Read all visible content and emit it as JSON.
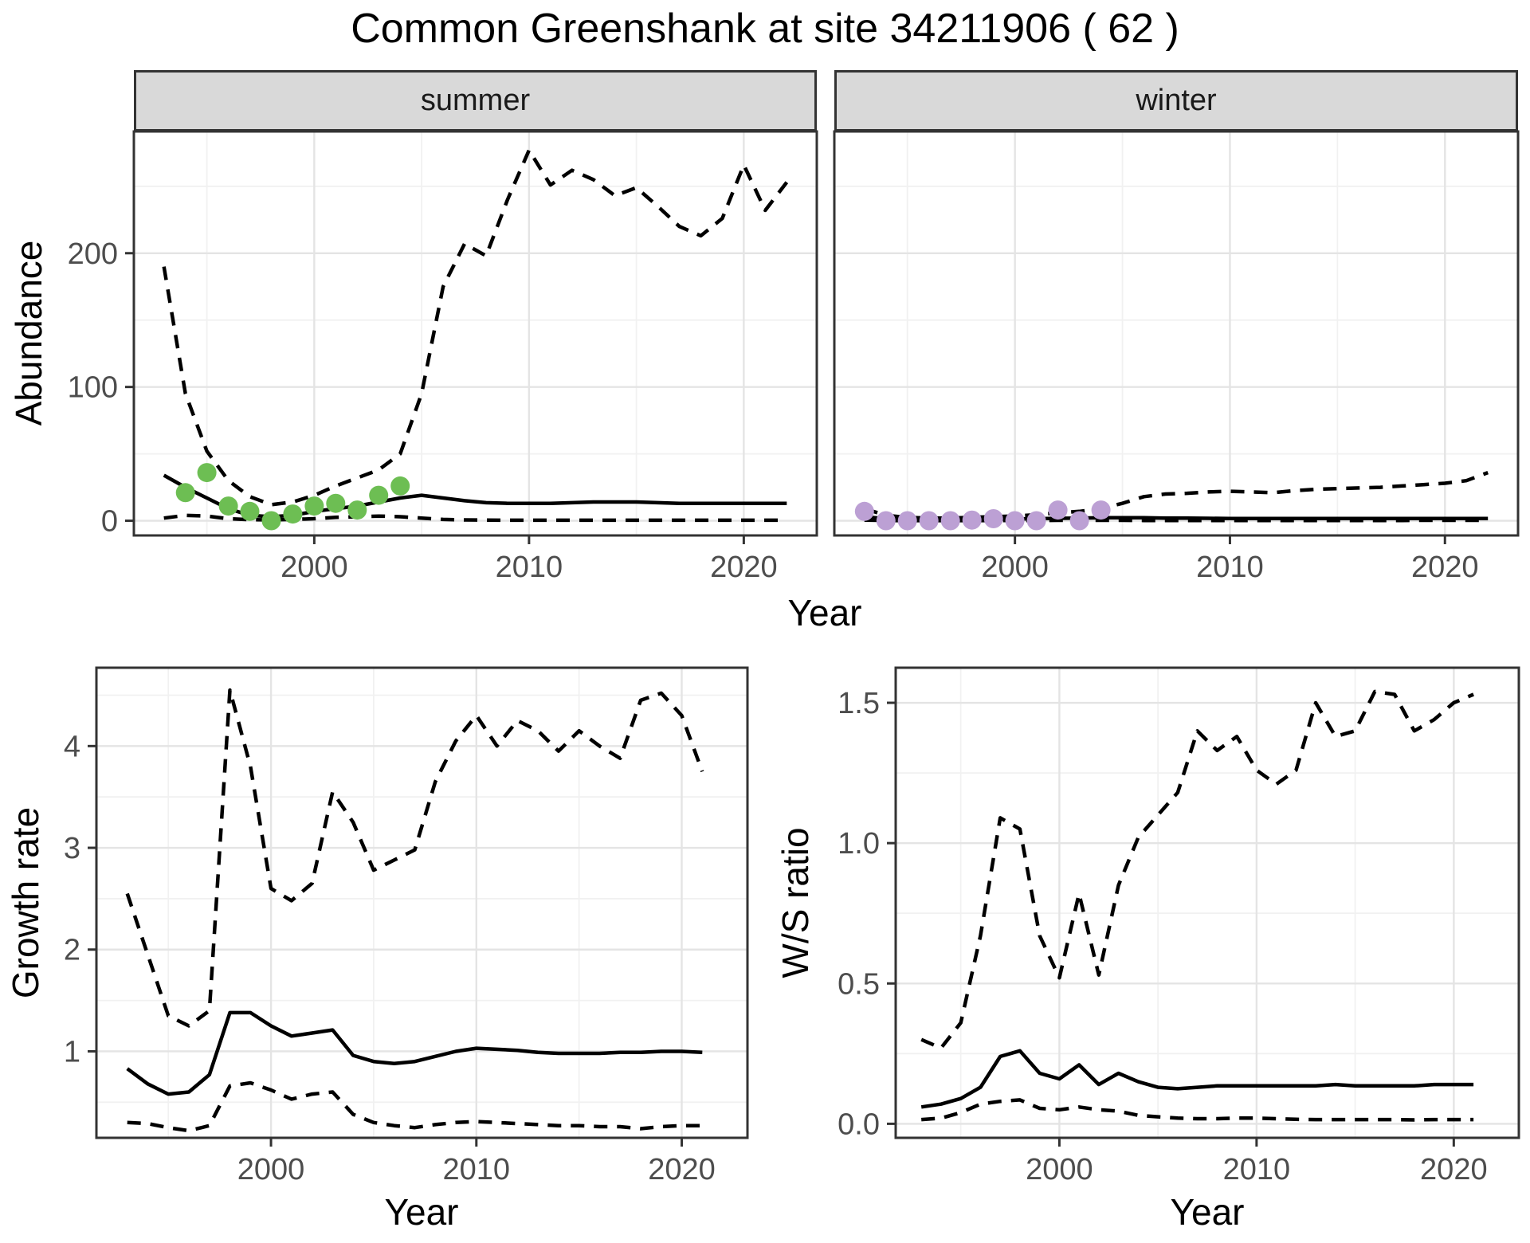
{
  "title": "Common Greenshank at site 34211906 ( 62 )",
  "facets": {
    "summer": "summer",
    "winter": "winter"
  },
  "axis_titles": {
    "x": "Year",
    "y_top": "Abundance",
    "y_growth": "Growth rate",
    "y_ws": "W/S ratio"
  },
  "colors": {
    "summer_points": "#6DBE53",
    "winter_points": "#BCA0D4",
    "line": "#000000",
    "grid_major": "#E4E4E4",
    "grid_minor": "#F1F1F1",
    "strip_bg": "#D9D9D9",
    "panel_border": "#333333",
    "tick_text": "#4D4D4D"
  },
  "chart_data": [
    {
      "id": "abundance-summer",
      "type": "line",
      "facet": "summer",
      "xlabel": "Year",
      "ylabel": "Abundance",
      "legend": "none",
      "grid": true,
      "xlim": [
        1991.6,
        2023.4
      ],
      "ylim": [
        -11,
        291
      ],
      "xticks": [
        2000,
        2010,
        2020
      ],
      "xtick_labels": [
        "2000",
        "2010",
        "2020"
      ],
      "xminor": [
        1995,
        2005,
        2015
      ],
      "yticks": [
        0,
        100,
        200
      ],
      "ytick_labels": [
        "0",
        "100",
        "200"
      ],
      "yminor": [
        50,
        150,
        250
      ],
      "years": [
        1993,
        1994,
        1995,
        1996,
        1997,
        1998,
        1999,
        2000,
        2001,
        2002,
        2003,
        2004,
        2005,
        2006,
        2007,
        2008,
        2009,
        2010,
        2011,
        2012,
        2013,
        2014,
        2015,
        2016,
        2017,
        2018,
        2019,
        2020,
        2021,
        2022
      ],
      "series": [
        {
          "name": "median",
          "style": "solid",
          "values": [
            34,
            25,
            17,
            9,
            4,
            3,
            4,
            7,
            9,
            11,
            14,
            17,
            19,
            17,
            15,
            13.5,
            13,
            13,
            13,
            13.5,
            14,
            14,
            14,
            13.5,
            13,
            13,
            13,
            13,
            13,
            13
          ]
        },
        {
          "name": "upper95",
          "style": "dashed",
          "values": [
            190,
            95,
            52,
            30,
            18,
            12,
            14,
            19,
            26,
            32,
            38,
            50,
            95,
            175,
            207,
            198,
            240,
            277,
            251,
            262,
            255,
            243,
            249,
            235,
            220,
            213,
            226,
            266,
            232,
            253
          ]
        },
        {
          "name": "lower95",
          "style": "dashed",
          "values": [
            2,
            4,
            3.5,
            1.5,
            0.8,
            0.6,
            1,
            1.5,
            2.5,
            3,
            3.5,
            3,
            2,
            1,
            0.6,
            0.5,
            0.4,
            0.4,
            0.4,
            0.4,
            0.4,
            0.4,
            0.4,
            0.4,
            0.4,
            0.4,
            0.4,
            0.4,
            0.4,
            0.4
          ]
        }
      ],
      "points": {
        "name": "observed-summer",
        "color": "#6DBE53",
        "years": [
          1994,
          1995,
          1996,
          1997,
          1998,
          1999,
          2000,
          2001,
          2002,
          2003,
          2004
        ],
        "values": [
          21,
          36,
          11,
          7,
          0,
          5,
          11,
          13,
          8,
          19,
          26
        ]
      }
    },
    {
      "id": "abundance-winter",
      "type": "line",
      "facet": "winter",
      "xlabel": "Year",
      "ylabel": "Abundance",
      "legend": "none",
      "grid": true,
      "xlim": [
        1991.6,
        2023.4
      ],
      "ylim": [
        -11,
        291
      ],
      "xticks": [
        2000,
        2010,
        2020
      ],
      "xtick_labels": [
        "2000",
        "2010",
        "2020"
      ],
      "xminor": [
        1995,
        2005,
        2015
      ],
      "yticks": [
        0,
        100,
        200
      ],
      "ytick_labels": [
        "0",
        "100",
        "200"
      ],
      "yminor": [
        50,
        150,
        250
      ],
      "years": [
        1993,
        1994,
        1995,
        1996,
        1997,
        1998,
        1999,
        2000,
        2001,
        2002,
        2003,
        2004,
        2005,
        2006,
        2007,
        2008,
        2009,
        2010,
        2011,
        2012,
        2013,
        2014,
        2015,
        2016,
        2017,
        2018,
        2019,
        2020,
        2021,
        2022
      ],
      "series": [
        {
          "name": "median",
          "style": "solid",
          "values": [
            3,
            1.5,
            1,
            0.8,
            0.8,
            1,
            1.2,
            1.3,
            1.5,
            1.8,
            2,
            2.2,
            2.3,
            2.2,
            2,
            1.9,
            1.8,
            1.7,
            1.7,
            1.6,
            1.6,
            1.6,
            1.6,
            1.6,
            1.6,
            1.6,
            1.6,
            1.6,
            1.6,
            1.6
          ]
        },
        {
          "name": "upper95",
          "style": "dashed",
          "values": [
            9,
            4,
            2.5,
            2,
            2,
            2.5,
            3,
            3.5,
            4.5,
            6,
            7,
            9,
            13,
            18,
            20,
            20.5,
            21.5,
            22,
            21.5,
            21,
            22.5,
            23.5,
            24,
            24.5,
            25,
            26,
            27,
            28,
            30,
            36
          ]
        },
        {
          "name": "lower95",
          "style": "dashed",
          "values": [
            0.5,
            0.2,
            0.1,
            0.1,
            0.1,
            0.1,
            0.2,
            0.2,
            0.2,
            0.3,
            0.3,
            0.3,
            0.3,
            0.2,
            0.2,
            0.2,
            0.2,
            0.2,
            0.2,
            0.2,
            0.2,
            0.2,
            0.2,
            0.2,
            0.2,
            0.2,
            0.3,
            0.3,
            0.3,
            0.3
          ]
        }
      ],
      "points": {
        "name": "observed-winter",
        "color": "#BCA0D4",
        "years": [
          1993,
          1994,
          1995,
          1996,
          1997,
          1998,
          1999,
          2000,
          2001,
          2002,
          2003,
          2004
        ],
        "values": [
          7,
          0,
          0,
          0,
          0,
          0.5,
          1.5,
          0,
          0,
          8,
          0,
          8
        ]
      }
    },
    {
      "id": "growth-rate",
      "type": "line",
      "facet": null,
      "xlabel": "Year",
      "ylabel": "Growth rate",
      "legend": "none",
      "grid": true,
      "xlim": [
        1991.5,
        2023.2
      ],
      "ylim": [
        0.15,
        4.77
      ],
      "xticks": [
        2000,
        2010,
        2020
      ],
      "xtick_labels": [
        "2000",
        "2010",
        "2020"
      ],
      "xminor": [
        1995,
        2005,
        2015
      ],
      "yticks": [
        1,
        2,
        3,
        4
      ],
      "ytick_labels": [
        "1",
        "2",
        "3",
        "4"
      ],
      "yminor": [
        0.5,
        1.5,
        2.5,
        3.5,
        4.5
      ],
      "years": [
        1993,
        1994,
        1995,
        1996,
        1997,
        1998,
        1999,
        2000,
        2001,
        2002,
        2003,
        2004,
        2005,
        2006,
        2007,
        2008,
        2009,
        2010,
        2011,
        2012,
        2013,
        2014,
        2015,
        2016,
        2017,
        2018,
        2019,
        2020,
        2021
      ],
      "series": [
        {
          "name": "median",
          "style": "solid",
          "values": [
            0.83,
            0.68,
            0.58,
            0.6,
            0.77,
            1.38,
            1.38,
            1.25,
            1.15,
            1.18,
            1.21,
            0.96,
            0.9,
            0.88,
            0.9,
            0.95,
            1.0,
            1.03,
            1.02,
            1.01,
            0.99,
            0.98,
            0.98,
            0.98,
            0.99,
            0.99,
            1.0,
            1.0,
            0.99
          ]
        },
        {
          "name": "upper95",
          "style": "dashed",
          "values": [
            2.55,
            1.95,
            1.35,
            1.25,
            1.4,
            4.55,
            3.8,
            2.6,
            2.48,
            2.65,
            3.55,
            3.25,
            2.78,
            2.88,
            2.98,
            3.65,
            4.05,
            4.3,
            4.0,
            4.25,
            4.15,
            3.95,
            4.15,
            4.0,
            3.88,
            4.45,
            4.52,
            4.3,
            3.75
          ]
        },
        {
          "name": "lower95",
          "style": "dashed",
          "values": [
            0.3,
            0.29,
            0.25,
            0.22,
            0.27,
            0.66,
            0.69,
            0.62,
            0.53,
            0.58,
            0.6,
            0.38,
            0.3,
            0.27,
            0.25,
            0.28,
            0.3,
            0.31,
            0.3,
            0.29,
            0.28,
            0.27,
            0.27,
            0.26,
            0.26,
            0.24,
            0.26,
            0.27,
            0.27
          ]
        }
      ]
    },
    {
      "id": "ws-ratio",
      "type": "line",
      "facet": null,
      "xlabel": "Year",
      "ylabel": "W/S ratio",
      "legend": "none",
      "grid": true,
      "xlim": [
        1991.7,
        2023.3
      ],
      "ylim": [
        -0.05,
        1.625
      ],
      "xticks": [
        2000,
        2010,
        2020
      ],
      "xtick_labels": [
        "2000",
        "2010",
        "2020"
      ],
      "xminor": [
        1995,
        2005,
        2015
      ],
      "yticks": [
        0,
        0.5,
        1,
        1.5
      ],
      "ytick_labels": [
        "0.0",
        "0.5",
        "1.0",
        "1.5"
      ],
      "yminor": [
        0.25,
        0.75,
        1.25
      ],
      "years": [
        1993,
        1994,
        1995,
        1996,
        1997,
        1998,
        1999,
        2000,
        2001,
        2002,
        2003,
        2004,
        2005,
        2006,
        2007,
        2008,
        2009,
        2010,
        2011,
        2012,
        2013,
        2014,
        2015,
        2016,
        2017,
        2018,
        2019,
        2020,
        2021
      ],
      "series": [
        {
          "name": "median",
          "style": "solid",
          "values": [
            0.06,
            0.07,
            0.09,
            0.13,
            0.24,
            0.26,
            0.18,
            0.16,
            0.21,
            0.14,
            0.18,
            0.15,
            0.13,
            0.125,
            0.13,
            0.135,
            0.135,
            0.135,
            0.135,
            0.135,
            0.135,
            0.14,
            0.135,
            0.135,
            0.135,
            0.135,
            0.14,
            0.14,
            0.14
          ]
        },
        {
          "name": "upper95",
          "style": "dashed",
          "values": [
            0.3,
            0.27,
            0.36,
            0.67,
            1.09,
            1.05,
            0.67,
            0.52,
            0.82,
            0.53,
            0.85,
            1.02,
            1.1,
            1.18,
            1.4,
            1.33,
            1.38,
            1.26,
            1.21,
            1.26,
            1.5,
            1.38,
            1.4,
            1.54,
            1.53,
            1.4,
            1.44,
            1.5,
            1.53
          ]
        },
        {
          "name": "lower95",
          "style": "dashed",
          "values": [
            0.015,
            0.02,
            0.04,
            0.07,
            0.08,
            0.085,
            0.055,
            0.05,
            0.06,
            0.05,
            0.045,
            0.03,
            0.025,
            0.02,
            0.018,
            0.018,
            0.02,
            0.02,
            0.018,
            0.016,
            0.015,
            0.015,
            0.015,
            0.015,
            0.015,
            0.014,
            0.015,
            0.015,
            0.015
          ]
        }
      ]
    }
  ]
}
